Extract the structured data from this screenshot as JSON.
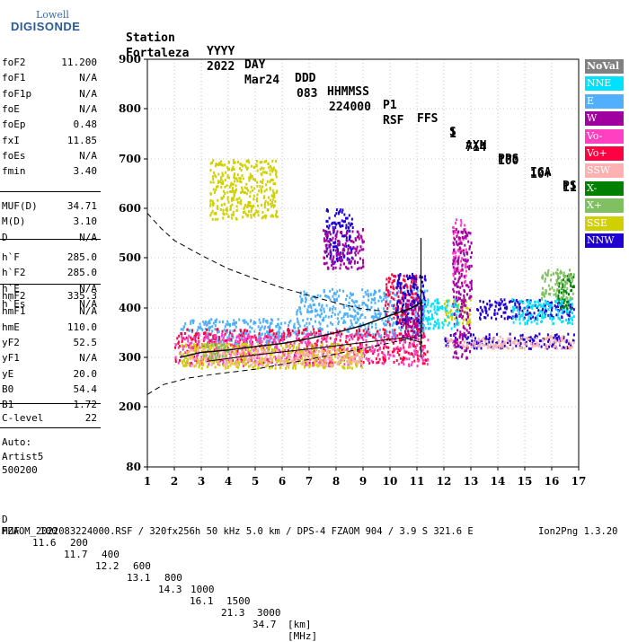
{
  "logo": {
    "line1": "Lowell",
    "line2": "DIGISONDE"
  },
  "header": {
    "labels": [
      "Station",
      "YYYY",
      "DAY",
      "DDD",
      "HHMMSS",
      "P1",
      "FFS",
      "S",
      "AXN",
      "PPS",
      "IGA",
      "PS"
    ],
    "values": [
      "Fortaleza",
      "2022",
      "Mar24",
      "083",
      "224000",
      "RSF",
      "1",
      "714",
      "100",
      "10+",
      "11"
    ]
  },
  "params": {
    "group1": [
      {
        "k": "foF2",
        "v": "11.200"
      },
      {
        "k": "foF1",
        "v": "N/A"
      },
      {
        "k": "foF1p",
        "v": "N/A"
      },
      {
        "k": "foE",
        "v": "N/A"
      },
      {
        "k": "foEp",
        "v": "0.48"
      },
      {
        "k": "fxI",
        "v": "11.85"
      },
      {
        "k": "foEs",
        "v": "N/A"
      },
      {
        "k": "fmin",
        "v": "3.40"
      }
    ],
    "group2": [
      {
        "k": "MUF(D)",
        "v": "34.71"
      },
      {
        "k": "M(D)",
        "v": "3.10"
      },
      {
        "k": "D",
        "v": "N/A"
      }
    ],
    "group3": [
      {
        "k": "h`F",
        "v": "285.0"
      },
      {
        "k": "h`F2",
        "v": "285.0"
      },
      {
        "k": "h`E",
        "v": "N/A"
      },
      {
        "k": "h`Es",
        "v": "N/A"
      }
    ],
    "group4": [
      {
        "k": "hmF2",
        "v": "335.3"
      },
      {
        "k": "hmF1",
        "v": "N/A"
      },
      {
        "k": "hmE",
        "v": "110.0"
      },
      {
        "k": "yF2",
        "v": "52.5"
      },
      {
        "k": "yF1",
        "v": "N/A"
      },
      {
        "k": "yE",
        "v": "20.0"
      },
      {
        "k": "B0",
        "v": "54.4"
      },
      {
        "k": "B1",
        "v": "1.72"
      }
    ],
    "group5": [
      {
        "k": "C-level",
        "v": "22"
      }
    ],
    "auto": [
      "Auto:",
      "Artist5",
      "500200"
    ]
  },
  "legend": [
    {
      "label": "NoVal",
      "color": "#808080"
    },
    {
      "label": "NNE",
      "color": "#00e0ff"
    },
    {
      "label": "E",
      "color": "#50b0ff"
    },
    {
      "label": "W",
      "color": "#a000a0"
    },
    {
      "label": "Vo-",
      "color": "#ff40c0"
    },
    {
      "label": "Vo+",
      "color": "#ff0040"
    },
    {
      "label": "SSW",
      "color": "#ffb0b0"
    },
    {
      "label": "X-",
      "color": "#008000"
    },
    {
      "label": "X+",
      "color": "#80c060"
    },
    {
      "label": "SSE",
      "color": "#d0d000"
    },
    {
      "label": "NNW",
      "color": "#2000d0"
    }
  ],
  "footer": {
    "d_label": "D",
    "d_values": [
      "100",
      "200",
      "400",
      "600",
      "800",
      "1000",
      "1500",
      "3000"
    ],
    "d_unit": "[km]",
    "muf_label": "MUF",
    "muf_values": [
      "11.6",
      "11.7",
      "12.2",
      "13.1",
      "14.3",
      "16.1",
      "21.3",
      "34.7"
    ],
    "muf_unit": "[MHz]",
    "info": "FZAOM_2022083224000.RSF / 320fx256h 50 kHz 5.0 km / DPS-4 FZAOM 904 / 3.9 S 321.6 E",
    "version": "Ion2Png 1.3.20"
  },
  "chart_data": {
    "type": "scatter",
    "x": {
      "range": [
        1,
        17
      ],
      "ticks": [
        1,
        2,
        3,
        4,
        5,
        6,
        7,
        8,
        9,
        10,
        11,
        12,
        13,
        14,
        15,
        16,
        17
      ]
    },
    "y": {
      "range": [
        80,
        900
      ],
      "ticks": [
        80,
        200,
        300,
        400,
        500,
        600,
        700,
        800,
        900
      ]
    },
    "grid": "dotted",
    "series": [
      {
        "color": "#50b0ff",
        "regions": [
          [
            3.2,
            6.5,
            330,
            380
          ],
          [
            6.5,
            11.4,
            345,
            440
          ],
          [
            2.2,
            3.5,
            350,
            380
          ]
        ]
      },
      {
        "color": "#ff0040",
        "regions": [
          [
            2.0,
            11.4,
            290,
            360
          ],
          [
            9.8,
            11.0,
            360,
            470
          ]
        ]
      },
      {
        "color": "#ff40c0",
        "regions": [
          [
            2.0,
            11.4,
            285,
            350
          ],
          [
            12.3,
            12.8,
            450,
            580
          ]
        ]
      },
      {
        "color": "#2000d0",
        "regions": [
          [
            12.0,
            16.8,
            320,
            350
          ],
          [
            13.2,
            16.8,
            380,
            420
          ],
          [
            10.2,
            11.3,
            370,
            470
          ],
          [
            7.6,
            8.6,
            490,
            600
          ]
        ]
      },
      {
        "color": "#d0d000",
        "regions": [
          [
            3.3,
            5.8,
            580,
            700
          ],
          [
            2.2,
            9.0,
            280,
            330
          ],
          [
            12.0,
            13.0,
            370,
            420
          ]
        ]
      },
      {
        "color": "#ffb0b0",
        "regions": [
          [
            12.0,
            16.8,
            320,
            345
          ],
          [
            2.5,
            9.0,
            285,
            320
          ]
        ]
      },
      {
        "color": "#a000a0",
        "regions": [
          [
            10.4,
            11.2,
            340,
            420
          ],
          [
            12.3,
            13.0,
            300,
            560
          ],
          [
            7.5,
            9.0,
            480,
            560
          ]
        ]
      },
      {
        "color": "#00e0ff",
        "regions": [
          [
            11.2,
            12.5,
            360,
            420
          ],
          [
            14.5,
            16.8,
            370,
            420
          ]
        ]
      },
      {
        "color": "#008000",
        "regions": [
          [
            16.2,
            16.8,
            400,
            470
          ]
        ]
      },
      {
        "color": "#80c060",
        "regions": [
          [
            15.6,
            16.8,
            420,
            480
          ],
          [
            3.0,
            4.0,
            300,
            330
          ]
        ]
      }
    ],
    "lines": {
      "virtual_trace": [
        [
          2.2,
          300
        ],
        [
          3,
          310
        ],
        [
          4,
          315
        ],
        [
          5,
          322
        ],
        [
          6,
          328
        ],
        [
          7,
          338
        ],
        [
          8,
          350
        ],
        [
          9,
          365
        ],
        [
          10,
          385
        ],
        [
          10.8,
          400
        ],
        [
          11.2,
          412
        ]
      ],
      "virtual_trace_lower": [
        [
          3.2,
          292
        ],
        [
          5,
          305
        ],
        [
          7,
          317
        ],
        [
          9,
          330
        ],
        [
          10.5,
          340
        ],
        [
          11.2,
          330
        ]
      ],
      "profile_dashed": [
        [
          1,
          225
        ],
        [
          1.6,
          245
        ],
        [
          2.5,
          258
        ],
        [
          3.5,
          266
        ],
        [
          5,
          276
        ],
        [
          7,
          296
        ],
        [
          9,
          318
        ],
        [
          10.5,
          335
        ],
        [
          11.2,
          345
        ]
      ],
      "upper_dashed": [
        [
          1,
          590
        ],
        [
          1.5,
          560
        ],
        [
          2,
          535
        ],
        [
          3,
          505
        ],
        [
          4,
          478
        ],
        [
          5,
          458
        ],
        [
          6,
          440
        ],
        [
          7,
          425
        ],
        [
          8,
          410
        ],
        [
          9,
          398
        ],
        [
          10,
          392
        ],
        [
          10.5,
          390
        ]
      ],
      "f2_cusp": [
        [
          11.15,
          300
        ],
        [
          11.15,
          540
        ]
      ]
    }
  }
}
